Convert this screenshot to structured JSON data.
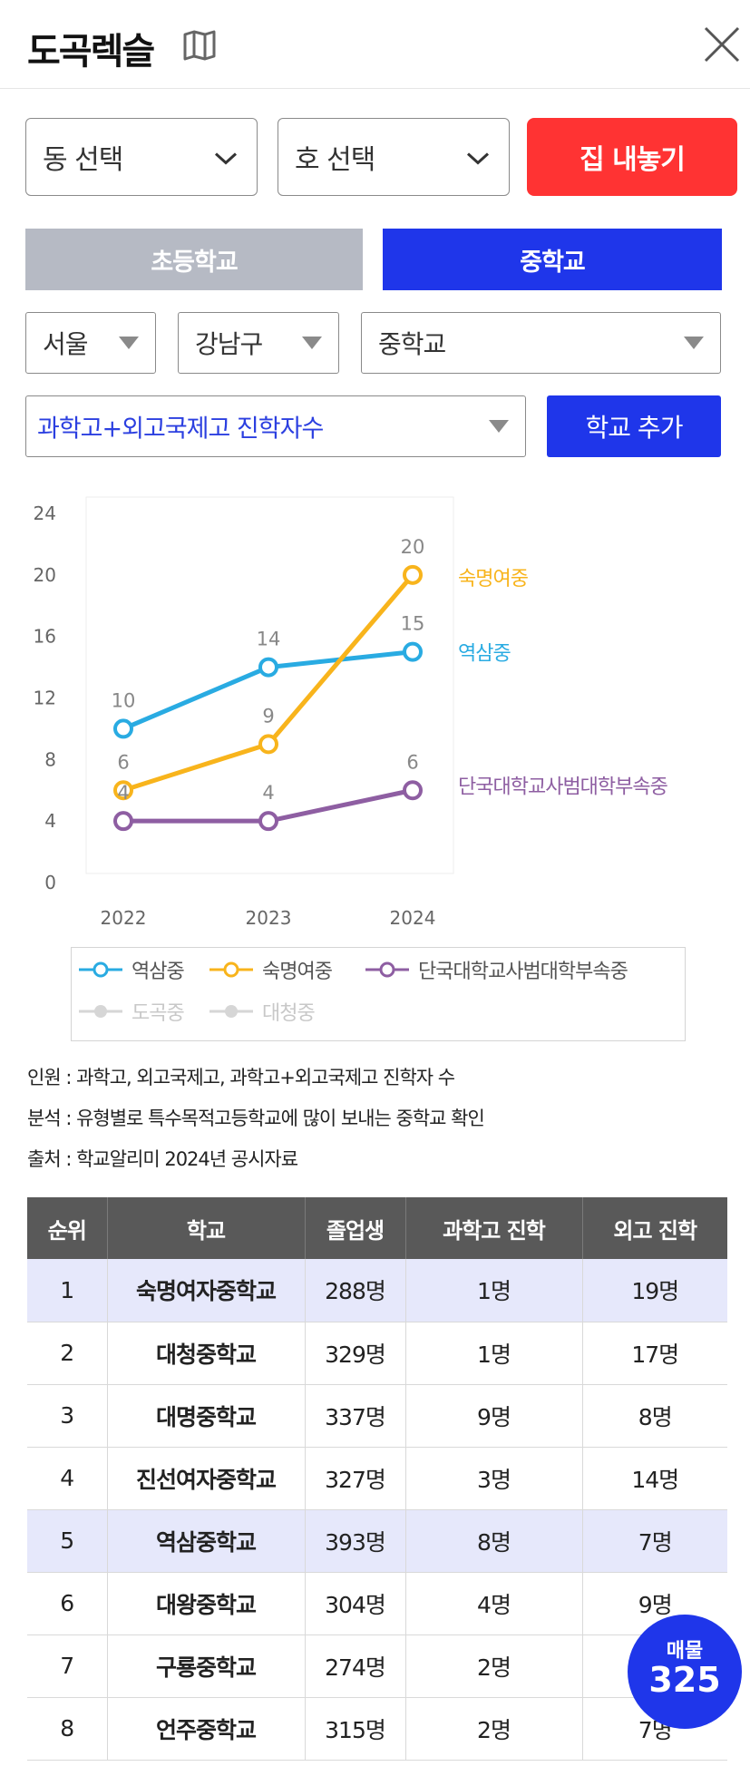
{
  "header": {
    "title": "도곡렉슬"
  },
  "controls": {
    "dong_select": "동 선택",
    "ho_select": "호 선택",
    "sell_button": "집 내놓기",
    "tab_elementary": "초등학교",
    "tab_middle": "중학교",
    "region_select": "서울",
    "district_select": "강남구",
    "level_select": "중학교",
    "metric_select": "과학고+외고국제고 진학자수",
    "add_school_button": "학교 추가"
  },
  "colors": {
    "accent_blue": "#1f36ea",
    "sell_red": "#ff3333",
    "tab_inactive": "#b6bac4",
    "series_yeoksam": "#29abe2",
    "series_sookmyung": "#f8b41c",
    "series_dankook": "#8e5ea2"
  },
  "chart_data": {
    "type": "line",
    "categories": [
      "2022",
      "2023",
      "2024"
    ],
    "yticks": [
      "0",
      "4",
      "8",
      "12",
      "16",
      "20",
      "24"
    ],
    "ylim": [
      0,
      24
    ],
    "series": [
      {
        "name": "역삼중",
        "values": [
          10,
          14,
          15
        ],
        "labels": [
          "10",
          "14",
          "15"
        ],
        "color": "#29abe2",
        "visible": true
      },
      {
        "name": "숙명여중",
        "values": [
          6,
          9,
          20
        ],
        "labels": [
          "6",
          "9",
          "20"
        ],
        "color": "#f8b41c",
        "visible": true
      },
      {
        "name": "단국대학교사범대학부속중",
        "values": [
          4,
          4,
          6
        ],
        "labels": [
          "4",
          "4",
          "6"
        ],
        "color": "#8e5ea2",
        "visible": true
      }
    ],
    "legend": [
      {
        "name": "역삼중",
        "color": "#29abe2",
        "active": true
      },
      {
        "name": "숙명여중",
        "color": "#f8b41c",
        "active": true
      },
      {
        "name": "단국대학교사범대학부속중",
        "color": "#8e5ea2",
        "active": true
      },
      {
        "name": "도곡중",
        "color": "#cccccc",
        "active": false
      },
      {
        "name": "대청중",
        "color": "#cccccc",
        "active": false
      }
    ],
    "legend_placement": "bottom",
    "grid": false
  },
  "notes": {
    "line1": "인원 : 과학고, 외고국제고, 과학고+외고국제고 진학자 수",
    "line2": "분석 : 유형별로 특수목적고등학교에 많이 보내는 중학교 확인",
    "line3": "출처 : 학교알리미 2024년 공시자료"
  },
  "table": {
    "headers": [
      "순위",
      "학교",
      "졸업생",
      "과학고 진학",
      "외고 진학"
    ],
    "rows": [
      {
        "rank": "1",
        "school": "숙명여자중학교",
        "grads": "288명",
        "science": "1명",
        "foreign": "19명",
        "highlight": true
      },
      {
        "rank": "2",
        "school": "대청중학교",
        "grads": "329명",
        "science": "1명",
        "foreign": "17명",
        "highlight": false
      },
      {
        "rank": "3",
        "school": "대명중학교",
        "grads": "337명",
        "science": "9명",
        "foreign": "8명",
        "highlight": false
      },
      {
        "rank": "4",
        "school": "진선여자중학교",
        "grads": "327명",
        "science": "3명",
        "foreign": "14명",
        "highlight": false
      },
      {
        "rank": "5",
        "school": "역삼중학교",
        "grads": "393명",
        "science": "8명",
        "foreign": "7명",
        "highlight": true
      },
      {
        "rank": "6",
        "school": "대왕중학교",
        "grads": "304명",
        "science": "4명",
        "foreign": "9명",
        "highlight": false
      },
      {
        "rank": "7",
        "school": "구룡중학교",
        "grads": "274명",
        "science": "2명",
        "foreign": "",
        "highlight": false
      },
      {
        "rank": "8",
        "school": "언주중학교",
        "grads": "315명",
        "science": "2명",
        "foreign": "7명",
        "highlight": false
      }
    ]
  },
  "fab": {
    "label": "매물",
    "count": "325"
  }
}
